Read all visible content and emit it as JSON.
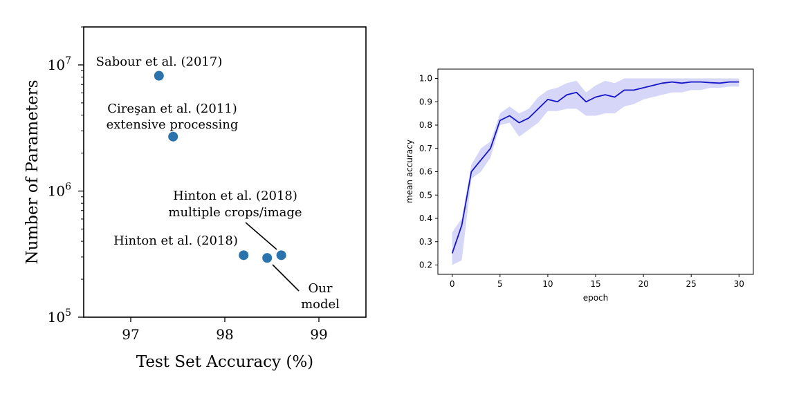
{
  "chart_data": [
    {
      "type": "scatter",
      "xlabel": "Test Set Accuracy (%)",
      "ylabel": "Number of Parameters",
      "xlim": [
        96.5,
        99.5
      ],
      "ylim": [
        100000,
        20000000
      ],
      "yscale": "log",
      "xticks": [
        "97",
        "98",
        "99"
      ],
      "yticks": [
        {
          "base": "10",
          "exp": "5"
        },
        {
          "base": "10",
          "exp": "6"
        },
        {
          "base": "10",
          "exp": "7"
        }
      ],
      "point_color": "#2b73ad",
      "points": [
        {
          "x": 97.3,
          "y": 8200000,
          "label": [
            "Sabour et al. (2017)"
          ]
        },
        {
          "x": 97.45,
          "y": 2700000,
          "label": [
            "Cireşan et al. (2011)",
            "extensive processing"
          ]
        },
        {
          "x": 98.2,
          "y": 310000,
          "label": [
            "Hinton et al. (2018)"
          ]
        },
        {
          "x": 98.6,
          "y": 310000,
          "label": [
            "Hinton et al. (2018)",
            "multiple crops/image"
          ]
        },
        {
          "x": 98.45,
          "y": 295000,
          "label": [
            "Our",
            "model"
          ]
        }
      ]
    },
    {
      "type": "line",
      "xlabel": "epoch",
      "ylabel": "mean accuracy",
      "xlim": [
        -1.5,
        31.5
      ],
      "ylim": [
        0.16,
        1.04
      ],
      "xticks": [
        0,
        5,
        10,
        15,
        20,
        25,
        30
      ],
      "yticks": [
        0.2,
        0.3,
        0.4,
        0.5,
        0.6,
        0.7,
        0.8,
        0.9,
        1.0
      ],
      "line_color": "#1515c8",
      "band_color": "#c8c8f5",
      "series": [
        {
          "name": "mean accuracy",
          "x": [
            0,
            1,
            2,
            3,
            4,
            5,
            6,
            7,
            8,
            9,
            10,
            11,
            12,
            13,
            14,
            15,
            16,
            17,
            18,
            19,
            20,
            21,
            22,
            23,
            24,
            25,
            26,
            27,
            28,
            29,
            30
          ],
          "values": [
            0.25,
            0.37,
            0.6,
            0.65,
            0.7,
            0.82,
            0.84,
            0.81,
            0.83,
            0.87,
            0.91,
            0.9,
            0.93,
            0.94,
            0.9,
            0.92,
            0.93,
            0.92,
            0.95,
            0.95,
            0.96,
            0.97,
            0.98,
            0.985,
            0.98,
            0.985,
            0.985,
            0.982,
            0.98,
            0.985,
            0.985
          ],
          "lower": [
            0.2,
            0.22,
            0.57,
            0.6,
            0.66,
            0.8,
            0.81,
            0.75,
            0.78,
            0.81,
            0.86,
            0.86,
            0.87,
            0.87,
            0.84,
            0.84,
            0.85,
            0.85,
            0.88,
            0.89,
            0.91,
            0.92,
            0.93,
            0.94,
            0.94,
            0.95,
            0.95,
            0.96,
            0.96,
            0.965,
            0.965
          ],
          "upper": [
            0.34,
            0.4,
            0.63,
            0.7,
            0.73,
            0.85,
            0.88,
            0.85,
            0.87,
            0.92,
            0.95,
            0.96,
            0.98,
            0.99,
            0.94,
            0.97,
            0.99,
            0.98,
            1.0,
            1.0,
            1.0,
            1.0,
            1.0,
            1.0,
            1.0,
            1.0,
            1.0,
            1.0,
            1.0,
            1.0,
            1.0
          ]
        }
      ]
    }
  ]
}
